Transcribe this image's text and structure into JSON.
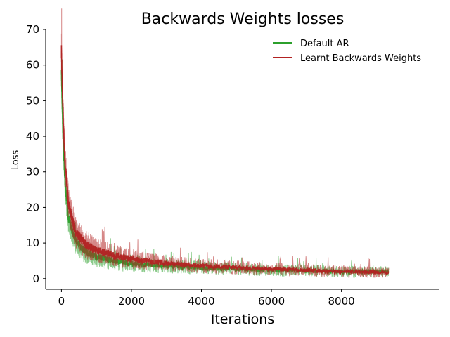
{
  "chart_data": {
    "type": "line",
    "title": "Backwards Weights losses",
    "xlabel": "Iterations",
    "ylabel": "Loss",
    "xlim": [
      -450,
      10800
    ],
    "ylim": [
      -3,
      70
    ],
    "x_ticks": [
      0,
      2000,
      4000,
      6000,
      8000
    ],
    "y_ticks": [
      0,
      10,
      20,
      30,
      40,
      50,
      60,
      70
    ],
    "grid": false,
    "legend_position": "top-right",
    "x_range": [
      0,
      9350
    ],
    "series": [
      {
        "name": "Default AR",
        "color": "#2ca02c",
        "trend": [
          {
            "x": 0,
            "y": 58
          },
          {
            "x": 50,
            "y": 38
          },
          {
            "x": 100,
            "y": 27
          },
          {
            "x": 200,
            "y": 17
          },
          {
            "x": 400,
            "y": 10.5
          },
          {
            "x": 700,
            "y": 7.5
          },
          {
            "x": 1000,
            "y": 6.2
          },
          {
            "x": 1500,
            "y": 5
          },
          {
            "x": 2000,
            "y": 4.2
          },
          {
            "x": 3000,
            "y": 3.5
          },
          {
            "x": 4000,
            "y": 3
          },
          {
            "x": 5000,
            "y": 2.7
          },
          {
            "x": 6000,
            "y": 2.4
          },
          {
            "x": 7000,
            "y": 2.2
          },
          {
            "x": 8000,
            "y": 2
          },
          {
            "x": 9350,
            "y": 1.9
          }
        ],
        "spread": [
          {
            "x": 0,
            "y": 6
          },
          {
            "x": 200,
            "y": 4
          },
          {
            "x": 1000,
            "y": 3
          },
          {
            "x": 3000,
            "y": 2
          },
          {
            "x": 9350,
            "y": 1.5
          }
        ]
      },
      {
        "name": "Learnt Backwards Weights",
        "color": "#b22222",
        "trend": [
          {
            "x": 0,
            "y": 64
          },
          {
            "x": 50,
            "y": 45
          },
          {
            "x": 100,
            "y": 33
          },
          {
            "x": 200,
            "y": 21
          },
          {
            "x": 400,
            "y": 13
          },
          {
            "x": 700,
            "y": 9.5
          },
          {
            "x": 1000,
            "y": 8
          },
          {
            "x": 1500,
            "y": 6.5
          },
          {
            "x": 2000,
            "y": 5.5
          },
          {
            "x": 3000,
            "y": 4.3
          },
          {
            "x": 4000,
            "y": 3.6
          },
          {
            "x": 5000,
            "y": 3.1
          },
          {
            "x": 6000,
            "y": 2.7
          },
          {
            "x": 7000,
            "y": 2.3
          },
          {
            "x": 8000,
            "y": 2
          },
          {
            "x": 9350,
            "y": 1.7
          }
        ],
        "spread": [
          {
            "x": 0,
            "y": 6
          },
          {
            "x": 200,
            "y": 5
          },
          {
            "x": 1000,
            "y": 3.5
          },
          {
            "x": 3000,
            "y": 2.2
          },
          {
            "x": 9350,
            "y": 1.5
          }
        ]
      }
    ]
  }
}
